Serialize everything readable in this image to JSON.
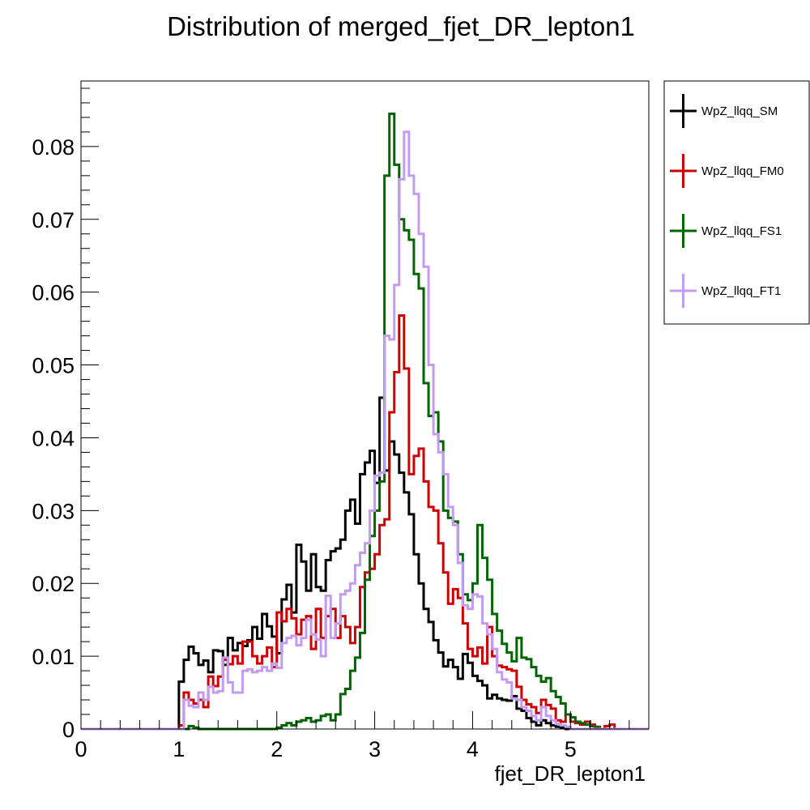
{
  "chart_data": {
    "type": "line",
    "style": "step-histogram",
    "title": "Distribution of merged_fjet_DR_lepton1",
    "xlabel": "fjet_DR_lepton1",
    "ylabel": "",
    "xlim": [
      0,
      5.8
    ],
    "ylim": [
      0,
      0.089
    ],
    "bin_width": 0.05,
    "x_ticks": [
      0,
      1,
      2,
      3,
      4,
      5
    ],
    "x_tick_labels": [
      "0",
      "1",
      "2",
      "3",
      "4",
      "5"
    ],
    "y_ticks": [
      0,
      0.01,
      0.02,
      0.03,
      0.04,
      0.05,
      0.06,
      0.07,
      0.08
    ],
    "y_tick_labels": [
      "0",
      "0.01",
      "0.02",
      "0.03",
      "0.04",
      "0.05",
      "0.06",
      "0.07",
      "0.08"
    ],
    "grid": false,
    "legend_position": "right-top",
    "series": [
      {
        "name": "WpZ_llqq_SM",
        "color": "#000000",
        "values": [
          0,
          0,
          0,
          0,
          0,
          0,
          0,
          0,
          0,
          0,
          0,
          0,
          0,
          0,
          0,
          0,
          0,
          0,
          0,
          0,
          0.0065,
          0.0095,
          0.0113,
          0.0104,
          0.0088,
          0.0094,
          0.0078,
          0.0108,
          0.0107,
          0.0088,
          0.0125,
          0.0108,
          0.0118,
          0.0114,
          0.0122,
          0.014,
          0.0124,
          0.0158,
          0.0141,
          0.0127,
          0.0104,
          0.0178,
          0.0198,
          0.016,
          0.0253,
          0.023,
          0.019,
          0.024,
          0.0195,
          0.019,
          0.0232,
          0.0244,
          0.0248,
          0.026,
          0.03,
          0.0315,
          0.0282,
          0.035,
          0.0366,
          0.0382,
          0.0338,
          0.0455,
          0.0355,
          0.0395,
          0.0377,
          0.0352,
          0.0325,
          0.0295,
          0.024,
          0.02,
          0.0165,
          0.0147,
          0.0122,
          0.0105,
          0.0086,
          0.0095,
          0.0085,
          0.0069,
          0.0103,
          0.0091,
          0.0073,
          0.0066,
          0.006,
          0.0042,
          0.0047,
          0.0042,
          0.004,
          0.0039,
          0.0045,
          0.0028,
          0.0025,
          0.0015,
          0.001,
          0.0005,
          0.0012,
          0.0008,
          0.0005,
          0.0003,
          0.0002,
          0,
          0,
          0,
          0,
          0,
          0,
          0,
          0,
          0,
          0,
          0,
          0,
          0,
          0,
          0,
          0,
          0
        ]
      },
      {
        "name": "WpZ_llqq_FM0",
        "color": "#cc0000",
        "values": [
          0,
          0,
          0,
          0,
          0,
          0,
          0,
          0,
          0,
          0,
          0,
          0,
          0,
          0,
          0,
          0,
          0,
          0,
          0,
          0,
          0.0005,
          0.005,
          0.004,
          0.0035,
          0.004,
          0.003,
          0.0072,
          0.0059,
          0.0072,
          0.0095,
          0.0089,
          0.01,
          0.009,
          0.012,
          0.012,
          0.01,
          0.009,
          0.01,
          0.0112,
          0.0085,
          0.016,
          0.0148,
          0.0165,
          0.0152,
          0.013,
          0.015,
          0.0155,
          0.011,
          0.0165,
          0.0125,
          0.0155,
          0.0165,
          0.0125,
          0.0155,
          0.014,
          0.0118,
          0.014,
          0.0195,
          0.0215,
          0.022,
          0.024,
          0.028,
          0.0288,
          0.0435,
          0.049,
          0.0568,
          0.0495,
          0.035,
          0.0375,
          0.0385,
          0.034,
          0.0305,
          0.03,
          0.0255,
          0.0215,
          0.0172,
          0.0192,
          0.018,
          0.0145,
          0.011,
          0.01,
          0.0112,
          0.009,
          0.014,
          0.01,
          0.0087,
          0.0085,
          0.0082,
          0.008,
          0.0058,
          0.004,
          0.0034,
          0.003,
          0.0022,
          0.004,
          0.0033,
          0.0028,
          0.0012,
          0.001,
          0.002,
          0.001,
          0.0008,
          0.0006,
          0.001,
          0.0006,
          0.0003,
          0,
          0.0004,
          0.0006,
          0,
          0,
          0,
          0,
          0,
          0,
          0
        ]
      },
      {
        "name": "WpZ_llqq_FS1",
        "color": "#006400",
        "values": [
          0,
          0,
          0,
          0,
          0,
          0,
          0,
          0,
          0,
          0,
          0,
          0,
          0,
          0,
          0,
          0,
          0,
          0,
          0,
          0,
          0,
          0,
          0.0004,
          0.0002,
          0,
          0,
          0,
          0,
          0,
          0,
          0,
          0,
          0,
          0,
          0,
          0,
          0,
          0,
          0,
          0,
          0.0002,
          0.0005,
          0.0008,
          0.0005,
          0.001,
          0.0012,
          0.0015,
          0.001,
          0.0012,
          0.0018,
          0.002,
          0.0012,
          0.002,
          0.0048,
          0.0055,
          0.008,
          0.0098,
          0.0132,
          0.0205,
          0.0265,
          0.03,
          0.034,
          0.076,
          0.0845,
          0.0775,
          0.07,
          0.0685,
          0.0672,
          0.0625,
          0.0605,
          0.0475,
          0.043,
          0.0435,
          0.0395,
          0.03,
          0.029,
          0.0285,
          0.024,
          0.0185,
          0.0177,
          0.02,
          0.028,
          0.0235,
          0.0205,
          0.0158,
          0.0135,
          0.0117,
          0.0105,
          0.0093,
          0.0125,
          0.0098,
          0.0096,
          0.0085,
          0.0073,
          0.0065,
          0.007,
          0.0052,
          0.0044,
          0.0035,
          0.002,
          0.0016,
          0.001,
          0.0008,
          0.0006,
          0.0004,
          0.0002,
          0,
          0,
          0,
          0,
          0,
          0,
          0,
          0,
          0
        ]
      },
      {
        "name": "WpZ_llqq_FT1",
        "color": "#c39bf0",
        "values": [
          0,
          0,
          0,
          0,
          0,
          0,
          0,
          0,
          0,
          0,
          0,
          0,
          0,
          0,
          0,
          0,
          0,
          0,
          0,
          0,
          0,
          0.004,
          0.0032,
          0.003,
          0.005,
          0.004,
          0.0058,
          0.005,
          0.0052,
          0.0098,
          0.0064,
          0.005,
          0.005,
          0.008,
          0.0082,
          0.0078,
          0.008,
          0.0085,
          0.008,
          0.009,
          0.0084,
          0.0118,
          0.0125,
          0.0128,
          0.0115,
          0.0125,
          0.015,
          0.013,
          0.0123,
          0.01,
          0.0183,
          0.0125,
          0.0145,
          0.0185,
          0.019,
          0.02,
          0.0225,
          0.0242,
          0.0255,
          0.03,
          0.0348,
          0.0352,
          0.054,
          0.0535,
          0.061,
          0.0755,
          0.082,
          0.076,
          0.0735,
          0.068,
          0.0635,
          0.05,
          0.0405,
          0.038,
          0.035,
          0.0305,
          0.028,
          0.0228,
          0.017,
          0.0165,
          0.0185,
          0.0182,
          0.0145,
          0.013,
          0.011,
          0.0078,
          0.0068,
          0.0064,
          0.0042,
          0.004,
          0.003,
          0.0025,
          0.0018,
          0.0012,
          0.003,
          0.0018,
          0.0012,
          0.0007,
          0.0005,
          0.0003,
          0,
          0,
          0,
          0,
          0,
          0,
          0,
          0,
          0,
          0,
          0,
          0,
          0,
          0,
          0,
          0
        ]
      }
    ]
  }
}
